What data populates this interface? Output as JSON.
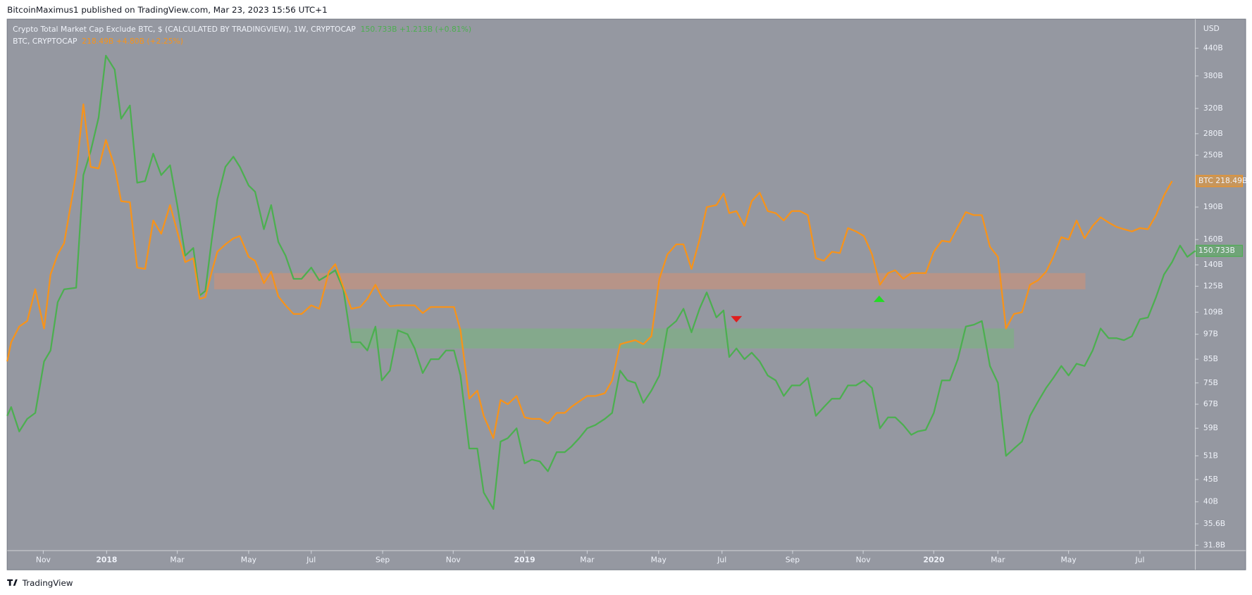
{
  "chart_data": {
    "type": "line",
    "log": true,
    "header": "BitcoinMaximus1 published on TradingView.com, Mar 23, 2023 15:56 UTC+1",
    "footer": "TradingView",
    "y_unit": "USD",
    "x": [
      0,
      0.5,
      1.5,
      2.5,
      3.5,
      4.6,
      5.4,
      6.3,
      7.1,
      8.6,
      9.5,
      10.4,
      11.4,
      12.3,
      13.4,
      14.2,
      15.3,
      16.2,
      17.2,
      18.2,
      19.2,
      20.3,
      21.2,
      22.2,
      23.2,
      24.0,
      24.7,
      25.5,
      26.2,
      27.2,
      28.2,
      29.0,
      30.1,
      30.9,
      32.0,
      32.9,
      33.8,
      34.7,
      35.7,
      36.7,
      37.9,
      38.9,
      40.1,
      40.9,
      41.9,
      42.9,
      44.0,
      44.9,
      45.9,
      46.7,
      47.7,
      48.7,
      49.9,
      50.8,
      51.8,
      52.8,
      53.8,
      54.7,
      55.7,
      56.5,
      57.6,
      58.6,
      59.4,
      60.6,
      61.5,
      62.4,
      63.5,
      64.5,
      65.4,
      66.4,
      67.4,
      68.5,
      69.5,
      70.3,
      71.3,
      72.3,
      73.3,
      74.5,
      75.4,
      76.4,
      77.3,
      78.3,
      79.3,
      80.3,
      81.3,
      82.3,
      83.4,
      84.3,
      85.3,
      86.3,
      87.2,
      88.4,
      89.3,
      90.0,
      90.9,
      91.9,
      92.8,
      93.8,
      94.8,
      95.8,
      96.8,
      97.8,
      98.8,
      99.8,
      100.8,
      101.8,
      102.8,
      103.8,
      104.8,
      105.8,
      106.8,
      107.8,
      108.8,
      109.8,
      110.7,
      111.7,
      112.7,
      113.5,
      114.5,
      115.5,
      116.5,
      117.5,
      118.5,
      119.5,
      120.5,
      121.5,
      122.5,
      123.5,
      124.5,
      125.5,
      126.5,
      127.5,
      128.5,
      129.5,
      130.4,
      131.4,
      132.3,
      133.3,
      134.3,
      135.3,
      136.3,
      137.3,
      138.3,
      139.2,
      140.2,
      141.2,
      142.2,
      143.2,
      144.2,
      145.2,
      146.2,
      147.1,
      148.1
    ],
    "series": [
      {
        "name": "Crypto Total Market Cap Exclude BTC, $ (CALCULATED BY TRADINGVIEW), 1W, CRYPTOCAP",
        "readout": "150.733B +1.213B (+0.81%)",
        "last_label": "150.733B",
        "color": "#4caf50",
        "values": [
          63,
          66,
          58,
          62,
          64,
          84,
          89,
          115,
          123,
          124,
          225,
          255,
          305,
          423,
          393,
          303,
          325,
          216,
          218,
          252,
          225,
          237,
          192,
          147,
          153,
          119,
          122,
          160,
          198,
          235,
          248,
          235,
          213,
          206,
          169,
          192,
          158,
          147,
          130,
          130,
          138,
          129,
          133,
          136,
          123,
          93,
          93,
          89,
          101,
          76,
          80,
          99,
          97,
          90,
          79,
          85,
          85,
          89,
          89,
          78,
          53,
          53,
          42,
          38.5,
          55,
          56,
          59,
          49,
          50,
          49.5,
          47,
          52,
          52,
          53.5,
          56,
          59,
          60,
          62,
          64,
          80,
          76,
          75,
          67.5,
          72,
          78,
          100,
          104,
          111,
          98,
          111,
          121,
          106,
          110,
          86,
          90,
          85,
          88,
          84,
          78,
          76,
          70,
          74,
          74,
          77,
          63,
          66,
          69,
          69,
          74,
          74,
          76,
          73,
          59,
          62.5,
          62.5,
          60,
          57,
          58,
          58.5,
          64,
          76,
          76,
          85,
          101,
          102,
          104,
          82,
          75,
          51,
          53,
          55,
          63,
          68,
          73,
          77,
          82,
          78,
          83,
          82,
          89,
          100,
          95,
          95,
          94,
          96,
          105,
          106,
          118,
          133,
          142,
          155,
          146,
          150.733
        ]
      },
      {
        "name": "BTC, CRYPTOCAP",
        "readout": "218.49B +4.80B (+2.25%)",
        "last_label": "BTC 218.49B",
        "color": "#f7931a",
        "values": [
          84,
          93,
          101,
          104,
          123,
          100,
          133,
          148,
          157,
          227,
          327,
          235,
          233,
          271,
          235,
          196,
          195,
          138,
          137,
          177,
          165,
          192,
          167,
          142,
          145,
          117,
          118,
          135,
          150,
          156,
          161,
          163,
          146,
          143,
          127,
          135,
          118.5,
          113,
          108,
          108,
          113,
          111,
          135,
          140.5,
          124.5,
          111,
          112,
          117,
          126,
          118,
          112.5,
          113,
          113,
          113,
          108.5,
          112,
          112,
          112,
          112,
          99,
          69,
          72,
          63,
          56,
          68.5,
          67,
          70,
          62.5,
          62,
          62,
          60.5,
          64,
          64,
          66,
          68,
          70,
          70,
          71,
          76,
          92,
          93,
          94,
          92,
          96,
          130,
          148,
          156,
          156,
          137,
          160,
          190,
          192,
          204,
          184,
          186,
          172,
          196,
          205,
          186,
          184,
          177,
          186,
          186,
          182,
          145,
          143,
          150,
          149,
          170,
          167,
          163,
          148,
          126,
          134,
          136,
          130,
          134,
          134,
          134,
          150,
          159,
          158,
          171,
          185,
          182,
          182,
          154,
          146,
          100,
          108,
          109,
          126,
          129,
          135,
          146,
          162,
          160,
          177,
          161,
          172,
          180,
          175,
          171,
          169,
          167,
          170,
          169,
          182,
          202,
          218,
          null,
          null,
          null
        ]
      }
    ],
    "zones": [
      {
        "color": "#e0906a",
        "x": [
          25.8,
          134.4
        ],
        "y": [
          123,
          134
        ]
      },
      {
        "color": "#6fbf73",
        "x": [
          42.9,
          125.5
        ],
        "y": [
          90,
          100
        ]
      }
    ],
    "markers": [
      {
        "shape": "down",
        "color": "#e01e1e",
        "x": 90.9,
        "value": 105
      },
      {
        "shape": "up",
        "color": "#22dd22",
        "x": 108.7,
        "value": 117
      }
    ],
    "xlim": [
      0,
      148.1
    ],
    "xticks": [
      {
        "value": 4.5,
        "label": "Nov"
      },
      {
        "value": 12.4,
        "label": "2018"
      },
      {
        "value": 21.2,
        "label": "Mar"
      },
      {
        "value": 30.1,
        "label": "May"
      },
      {
        "value": 37.9,
        "label": "Jul"
      },
      {
        "value": 46.8,
        "label": "Sep"
      },
      {
        "value": 55.6,
        "label": "Nov"
      },
      {
        "value": 64.5,
        "label": "2019"
      },
      {
        "value": 72.3,
        "label": "Mar"
      },
      {
        "value": 81.2,
        "label": "May"
      },
      {
        "value": 89.1,
        "label": "Jul"
      },
      {
        "value": 97.9,
        "label": "Sep"
      },
      {
        "value": 106.7,
        "label": "Nov"
      },
      {
        "value": 115.5,
        "label": "2020"
      },
      {
        "value": 123.5,
        "label": "Mar"
      },
      {
        "value": 132.3,
        "label": "May"
      },
      {
        "value": 141.2,
        "label": "Jul"
      }
    ],
    "ylim": [
      30.9,
      513
    ],
    "yticks": [
      {
        "value": 440,
        "label": "440B"
      },
      {
        "value": 380,
        "label": "380B"
      },
      {
        "value": 320,
        "label": "320B"
      },
      {
        "value": 280,
        "label": "280B"
      },
      {
        "value": 250,
        "label": "250B"
      },
      {
        "value": 190,
        "label": "190B"
      },
      {
        "value": 160,
        "label": "160B"
      },
      {
        "value": 140,
        "label": "140B"
      },
      {
        "value": 125,
        "label": "125B"
      },
      {
        "value": 109,
        "label": "109B"
      },
      {
        "value": 97,
        "label": "97B"
      },
      {
        "value": 85,
        "label": "85B"
      },
      {
        "value": 75,
        "label": "75B"
      },
      {
        "value": 67,
        "label": "67B"
      },
      {
        "value": 59,
        "label": "59B"
      },
      {
        "value": 51,
        "label": "51B"
      },
      {
        "value": 45,
        "label": "45B"
      },
      {
        "value": 40,
        "label": "40B"
      },
      {
        "value": 35.6,
        "label": "35.6B"
      },
      {
        "value": 31.8,
        "label": "31.8B"
      }
    ],
    "grid": false
  }
}
